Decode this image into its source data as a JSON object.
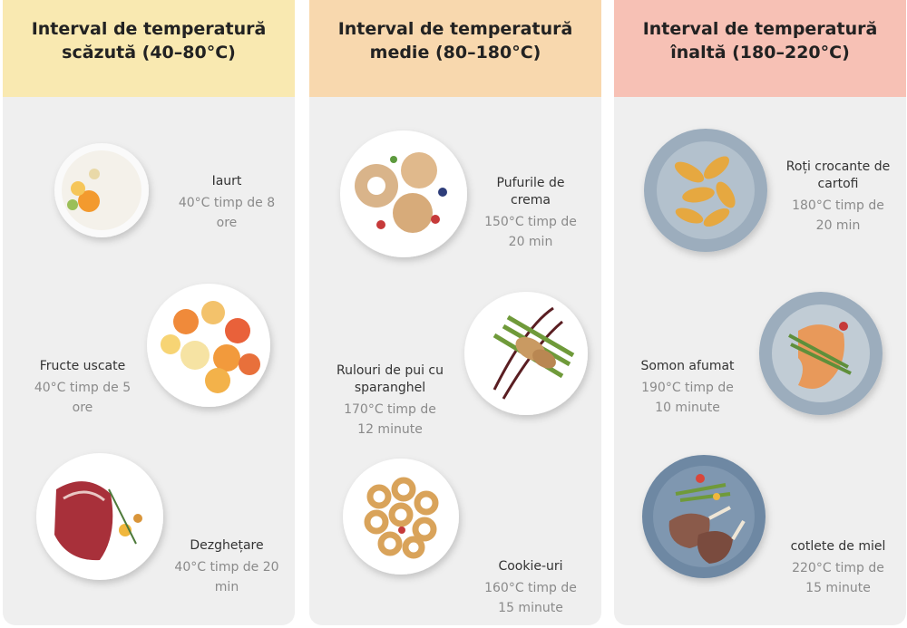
{
  "columns": [
    {
      "title": "Interval de temperatură scăzută (40–80°C)",
      "items": [
        {
          "name": "Iaurt",
          "detail": "40°C timp de 8 ore"
        },
        {
          "name": "Fructe uscate",
          "detail": "40°C timp de 5 ore"
        },
        {
          "name": "Dezghețare",
          "detail": "40°C timp de 20 min"
        }
      ]
    },
    {
      "title": "Interval de temperatură medie (80–180°C)",
      "items": [
        {
          "name": "Pufurile de crema",
          "detail": "150°C timp de 20 min"
        },
        {
          "name": "Rulouri de pui cu sparanghel",
          "detail": "170°C timp de 12 minute"
        },
        {
          "name": "Cookie-uri",
          "detail": "160°C timp de 15 minute"
        }
      ]
    },
    {
      "title": "Interval de temperatură înaltă (180–220°C)",
      "items": [
        {
          "name": "Roți crocante de cartofi",
          "detail": "180°C timp de 20 min"
        },
        {
          "name": "Somon afumat",
          "detail": "190°C timp de 10 minute"
        },
        {
          "name": "cotlete de miel",
          "detail": "220°C timp de 15 minute"
        }
      ]
    }
  ]
}
